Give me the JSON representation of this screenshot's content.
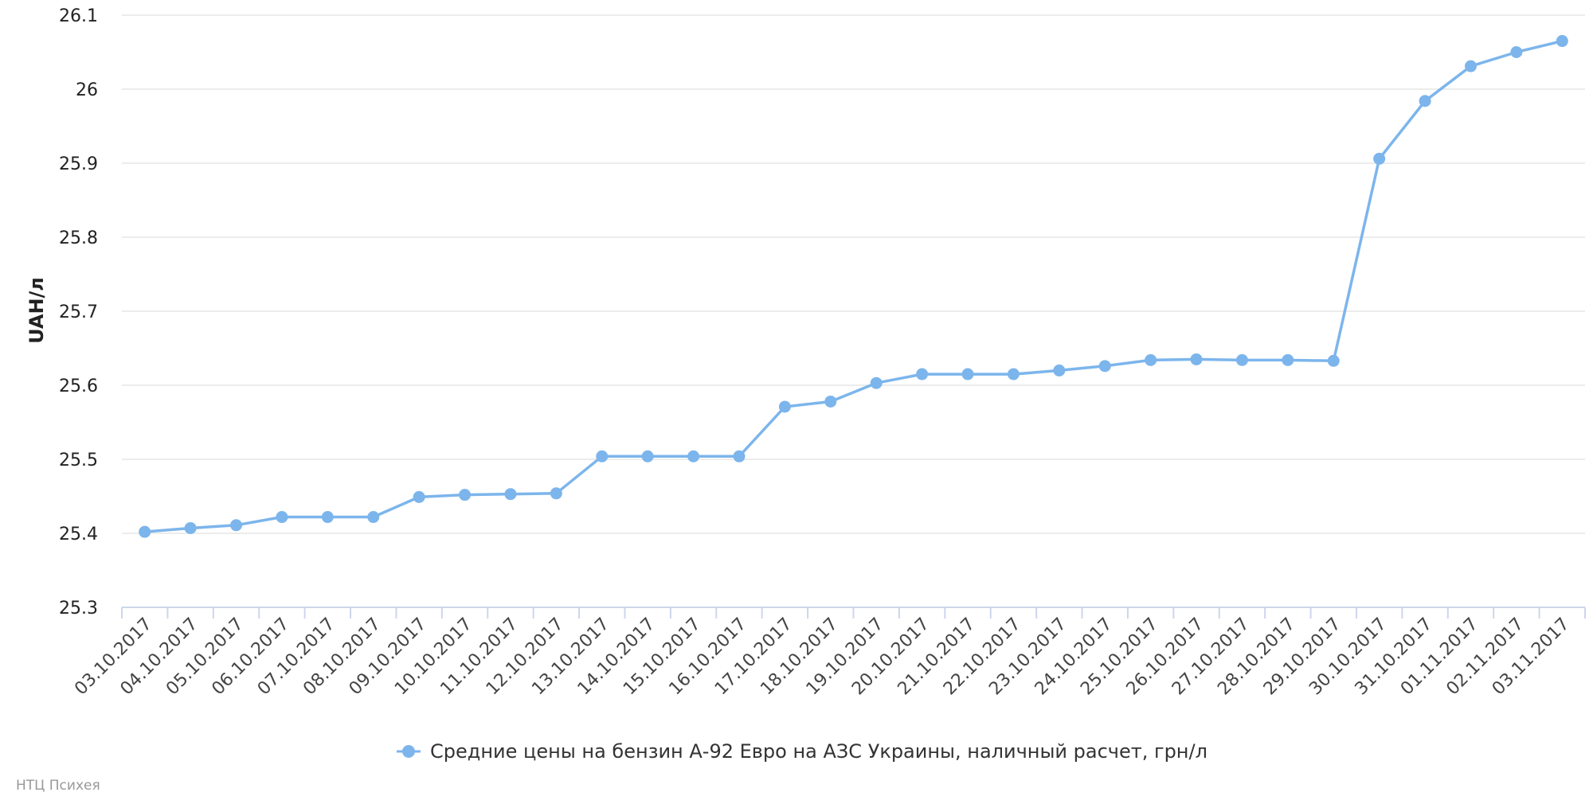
{
  "chart_data": {
    "type": "line",
    "ylabel": "UAH/л",
    "ylim": [
      25.3,
      26.1
    ],
    "yticks": [
      "25.3",
      "25.4",
      "25.5",
      "25.6",
      "25.7",
      "25.8",
      "25.9",
      "26",
      "26.1"
    ],
    "grid": true,
    "legend_position": "bottom-center",
    "categories": [
      "03.10.2017",
      "04.10.2017",
      "05.10.2017",
      "06.10.2017",
      "07.10.2017",
      "08.10.2017",
      "09.10.2017",
      "10.10.2017",
      "11.10.2017",
      "12.10.2017",
      "13.10.2017",
      "14.10.2017",
      "15.10.2017",
      "16.10.2017",
      "17.10.2017",
      "18.10.2017",
      "19.10.2017",
      "20.10.2017",
      "21.10.2017",
      "22.10.2017",
      "23.10.2017",
      "24.10.2017",
      "25.10.2017",
      "26.10.2017",
      "27.10.2017",
      "28.10.2017",
      "29.10.2017",
      "30.10.2017",
      "31.10.2017",
      "01.11.2017",
      "02.11.2017",
      "03.11.2017"
    ],
    "series": [
      {
        "name": "Средние цены на бензин А-92 Евро на АЗС Украины, наличный расчет, грн/л",
        "color": "#7cb5ec",
        "values": [
          25.402,
          25.407,
          25.411,
          25.422,
          25.422,
          25.422,
          25.449,
          25.452,
          25.453,
          25.454,
          25.504,
          25.504,
          25.504,
          25.504,
          25.571,
          25.578,
          25.603,
          25.615,
          25.615,
          25.615,
          25.62,
          25.626,
          25.634,
          25.635,
          25.634,
          25.634,
          25.633,
          25.906,
          25.984,
          26.031,
          26.05,
          26.065
        ]
      }
    ]
  },
  "credits": "НТЦ Психея"
}
